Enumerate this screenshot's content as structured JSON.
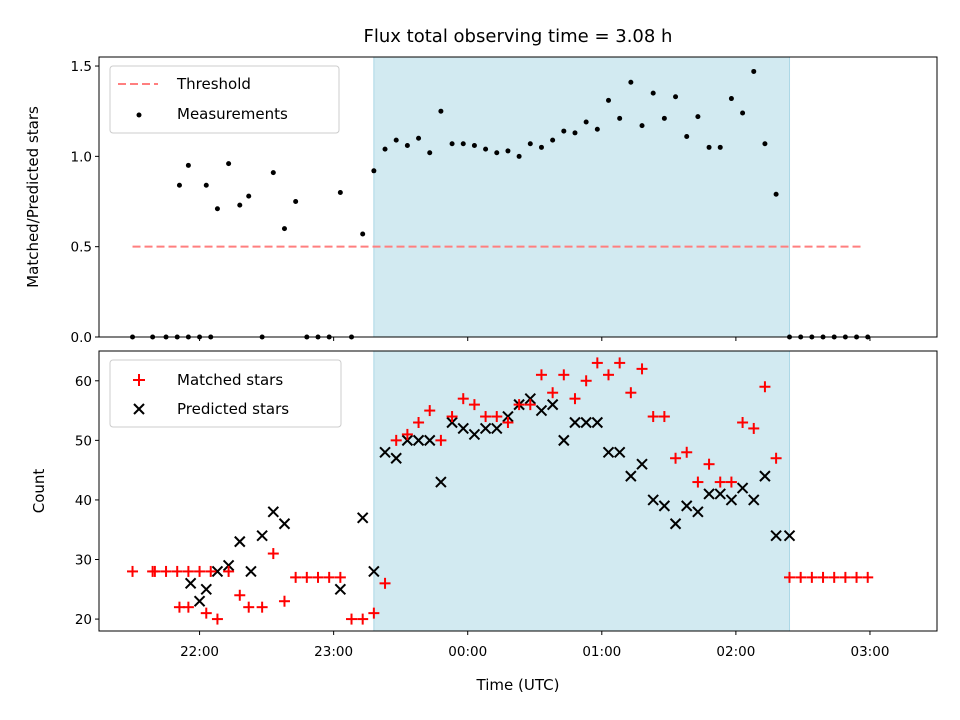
{
  "chart_data": [
    {
      "type": "scatter",
      "title": "Flux total observing time = 3.08 h",
      "ylabel": "Matched/Predicted stars",
      "xlabel": "",
      "xlim": [
        21.25,
        3.5
      ],
      "ylim": [
        0.0,
        1.55
      ],
      "yticks": [
        0.0,
        0.5,
        1.0,
        1.5
      ],
      "ytick_labels": [
        "0.0",
        "0.5",
        "1.0",
        "1.5"
      ],
      "xtick_hours": [
        22,
        23,
        24,
        25,
        26,
        27
      ],
      "xtick_labels": [
        "",
        "",
        "",
        "",
        "",
        ""
      ],
      "shaded_span": [
        "23:18",
        "02:24"
      ],
      "shade_color": "#add8e6",
      "threshold": {
        "name": "Threshold",
        "y": 0.5,
        "x_start": "21:30",
        "x_end": "02:56",
        "color": "#ff7f7f"
      },
      "series": [
        {
          "name": "Measurements",
          "color": "#000000",
          "x": [
            "21:30",
            "21:39",
            "21:45",
            "21:50",
            "21:55",
            "22:00",
            "22:05",
            "21:51",
            "21:55",
            "22:03",
            "22:08",
            "22:13",
            "22:18",
            "22:22",
            "22:28",
            "22:33",
            "22:38",
            "22:43",
            "22:48",
            "22:53",
            "22:58",
            "23:03",
            "23:08",
            "23:13",
            "23:18",
            "23:23",
            "23:28",
            "23:33",
            "23:38",
            "23:43",
            "23:48",
            "23:53",
            "23:58",
            "00:03",
            "00:08",
            "00:13",
            "00:18",
            "00:23",
            "00:28",
            "00:33",
            "00:38",
            "00:43",
            "00:48",
            "00:53",
            "00:58",
            "01:03",
            "01:08",
            "01:13",
            "01:18",
            "01:23",
            "01:28",
            "01:33",
            "01:38",
            "01:43",
            "01:48",
            "01:53",
            "01:58",
            "02:03",
            "02:08",
            "02:13",
            "02:18",
            "02:24",
            "02:29",
            "02:34",
            "02:39",
            "02:44",
            "02:49",
            "02:54",
            "02:59"
          ],
          "y": [
            0.0,
            0.0,
            0.0,
            0.0,
            0.0,
            0.0,
            0.0,
            0.84,
            0.95,
            0.84,
            0.71,
            0.96,
            0.73,
            0.78,
            0.0,
            0.91,
            0.6,
            0.75,
            0.0,
            0.0,
            0.0,
            0.8,
            0.0,
            0.57,
            0.92,
            1.04,
            1.09,
            1.06,
            1.1,
            1.02,
            1.25,
            1.07,
            1.07,
            1.06,
            1.04,
            1.02,
            1.03,
            1.0,
            1.07,
            1.05,
            1.09,
            1.14,
            1.13,
            1.19,
            1.15,
            1.31,
            1.21,
            1.41,
            1.17,
            1.35,
            1.21,
            1.33,
            1.11,
            1.22,
            1.05,
            1.05,
            1.32,
            1.24,
            1.47,
            1.07,
            0.79,
            0.0,
            0.0,
            0.0,
            0.0,
            0.0,
            0.0,
            0.0,
            0.0
          ]
        }
      ],
      "legend": {
        "placement": "top-left",
        "entries": [
          "Threshold",
          "Measurements"
        ]
      }
    },
    {
      "type": "scatter",
      "title": "",
      "ylabel": "Count",
      "xlabel": "Time (UTC)",
      "xlim": [
        21.25,
        3.5
      ],
      "ylim": [
        18,
        65
      ],
      "yticks": [
        20,
        30,
        40,
        50,
        60
      ],
      "ytick_labels": [
        "20",
        "30",
        "40",
        "50",
        "60"
      ],
      "xtick_hours": [
        22,
        23,
        24,
        25,
        26,
        27
      ],
      "xtick_labels": [
        "22:00",
        "23:00",
        "00:00",
        "01:00",
        "02:00",
        "03:00"
      ],
      "shaded_span": [
        "23:18",
        "02:24"
      ],
      "shade_color": "#add8e6",
      "series": [
        {
          "name": "Matched stars",
          "marker": "plus",
          "color": "#ff0000",
          "x": [
            "21:30",
            "21:39",
            "21:40",
            "21:45",
            "21:50",
            "21:55",
            "22:00",
            "22:05",
            "21:51",
            "21:55",
            "22:03",
            "22:08",
            "22:13",
            "22:18",
            "22:22",
            "22:28",
            "22:33",
            "22:38",
            "22:43",
            "22:48",
            "22:53",
            "22:58",
            "23:03",
            "23:08",
            "23:13",
            "23:18",
            "23:23",
            "23:28",
            "23:33",
            "23:38",
            "23:43",
            "23:48",
            "23:53",
            "23:58",
            "00:03",
            "00:08",
            "00:13",
            "00:18",
            "00:23",
            "00:28",
            "00:33",
            "00:38",
            "00:43",
            "00:48",
            "00:53",
            "00:58",
            "01:03",
            "01:08",
            "01:13",
            "01:18",
            "01:23",
            "01:28",
            "01:33",
            "01:38",
            "01:43",
            "01:48",
            "01:53",
            "01:58",
            "02:03",
            "02:08",
            "02:13",
            "02:18",
            "02:24",
            "02:29",
            "02:34",
            "02:39",
            "02:44",
            "02:49",
            "02:54",
            "02:59"
          ],
          "y": [
            28,
            28,
            28,
            28,
            28,
            28,
            28,
            28,
            22,
            22,
            21,
            20,
            28,
            24,
            22,
            22,
            31,
            23,
            27,
            27,
            27,
            27,
            27,
            20,
            20,
            21,
            26,
            50,
            51,
            53,
            55,
            50,
            54,
            57,
            56,
            54,
            54,
            53,
            56,
            56,
            61,
            58,
            61,
            57,
            60,
            63,
            61,
            63,
            58,
            62,
            54,
            54,
            47,
            48,
            43,
            46,
            43,
            43,
            53,
            52,
            59,
            47,
            27,
            27,
            27,
            27,
            27,
            27,
            27,
            27
          ]
        },
        {
          "name": "Predicted stars",
          "marker": "cross",
          "color": "#000000",
          "x": [
            "21:56",
            "22:00",
            "22:03",
            "22:08",
            "22:13",
            "22:18",
            "22:23",
            "22:28",
            "22:33",
            "22:38",
            "23:03",
            "23:13",
            "23:18",
            "23:23",
            "23:28",
            "23:33",
            "23:38",
            "23:43",
            "23:48",
            "23:53",
            "23:58",
            "00:03",
            "00:08",
            "00:13",
            "00:18",
            "00:23",
            "00:28",
            "00:33",
            "00:38",
            "00:43",
            "00:48",
            "00:53",
            "00:58",
            "01:03",
            "01:08",
            "01:13",
            "01:18",
            "01:23",
            "01:28",
            "01:33",
            "01:38",
            "01:43",
            "01:48",
            "01:53",
            "01:58",
            "02:03",
            "02:08",
            "02:13",
            "02:18",
            "02:24"
          ],
          "y": [
            26,
            23,
            25,
            28,
            29,
            33,
            28,
            34,
            38,
            36,
            25,
            37,
            28,
            48,
            47,
            50,
            50,
            50,
            43,
            53,
            52,
            51,
            52,
            52,
            54,
            56,
            57,
            55,
            56,
            50,
            53,
            53,
            53,
            48,
            48,
            44,
            46,
            40,
            39,
            36,
            39,
            38,
            41,
            41,
            40,
            42,
            40,
            44,
            34,
            34
          ]
        }
      ],
      "legend": {
        "placement": "top-left",
        "entries": [
          "Matched stars",
          "Predicted stars"
        ]
      }
    }
  ]
}
